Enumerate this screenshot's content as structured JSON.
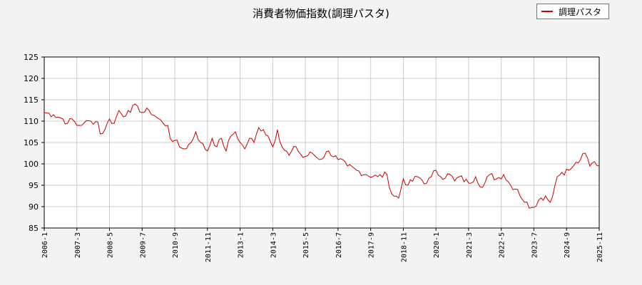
{
  "chart_data": {
    "type": "line",
    "title": "消費者物価指数(調理パスタ)",
    "legend": {
      "position": "top-right",
      "entries": [
        "調理パスタ"
      ]
    },
    "ylim": [
      85,
      125
    ],
    "yticks": [
      85,
      90,
      95,
      100,
      105,
      110,
      115,
      120,
      125
    ],
    "xtick_labels": [
      "2006-1",
      "2007-3",
      "2008-5",
      "2009-7",
      "2010-9",
      "2011-11",
      "2013-1",
      "2014-3",
      "2015-5",
      "2016-7",
      "2017-9",
      "2018-11",
      "2020-1",
      "2021-3",
      "2022-5",
      "2023-7",
      "2024-9",
      "2025-11"
    ],
    "grid": true,
    "series": [
      {
        "name": "調理パスタ",
        "color": "#cc0000",
        "x_start": "2006-1",
        "x_end": "2025-11",
        "anchors": [
          [
            "2006-1",
            112.0
          ],
          [
            "2006-5",
            111.5
          ],
          [
            "2006-9",
            110.5
          ],
          [
            "2006-11",
            109.5
          ],
          [
            "2007-1",
            110.5
          ],
          [
            "2007-3",
            109.0
          ],
          [
            "2007-6",
            109.5
          ],
          [
            "2007-9",
            110.0
          ],
          [
            "2007-12",
            109.8
          ],
          [
            "2008-1",
            107.0
          ],
          [
            "2008-3",
            108.0
          ],
          [
            "2008-5",
            110.5
          ],
          [
            "2008-7",
            109.5
          ],
          [
            "2008-9",
            112.5
          ],
          [
            "2008-11",
            111.0
          ],
          [
            "2009-1",
            112.5
          ],
          [
            "2009-5",
            113.5
          ],
          [
            "2009-7",
            112.0
          ],
          [
            "2009-10",
            112.5
          ],
          [
            "2010-1",
            111.0
          ],
          [
            "2010-4",
            109.5
          ],
          [
            "2010-6",
            109.0
          ],
          [
            "2010-7",
            106.0
          ],
          [
            "2010-9",
            105.5
          ],
          [
            "2010-11",
            104.0
          ],
          [
            "2011-1",
            103.5
          ],
          [
            "2011-4",
            105.0
          ],
          [
            "2011-6",
            107.5
          ],
          [
            "2011-8",
            105.0
          ],
          [
            "2011-11",
            103.0
          ],
          [
            "2012-1",
            106.0
          ],
          [
            "2012-3",
            104.0
          ],
          [
            "2012-5",
            106.0
          ],
          [
            "2012-7",
            103.0
          ],
          [
            "2012-9",
            106.5
          ],
          [
            "2012-11",
            107.5
          ],
          [
            "2013-1",
            105.0
          ],
          [
            "2013-3",
            103.5
          ],
          [
            "2013-5",
            106.0
          ],
          [
            "2013-7",
            105.0
          ],
          [
            "2013-9",
            108.5
          ],
          [
            "2013-11",
            108.0
          ],
          [
            "2014-1",
            106.5
          ],
          [
            "2014-3",
            104.0
          ],
          [
            "2014-5",
            108.0
          ],
          [
            "2014-7",
            104.0
          ],
          [
            "2014-10",
            102.0
          ],
          [
            "2015-1",
            104.0
          ],
          [
            "2015-4",
            101.5
          ],
          [
            "2015-8",
            102.5
          ],
          [
            "2015-11",
            101.0
          ],
          [
            "2016-3",
            103.0
          ],
          [
            "2016-7",
            101.0
          ],
          [
            "2016-11",
            99.5
          ],
          [
            "2017-3",
            98.5
          ],
          [
            "2017-7",
            97.5
          ],
          [
            "2017-12",
            97.0
          ],
          [
            "2018-4",
            97.5
          ],
          [
            "2018-6",
            93.0
          ],
          [
            "2018-9",
            92.0
          ],
          [
            "2018-11",
            96.5
          ],
          [
            "2019-1",
            95.0
          ],
          [
            "2019-5",
            97.0
          ],
          [
            "2019-9",
            95.5
          ],
          [
            "2019-11",
            97.0
          ],
          [
            "2020-1",
            98.5
          ],
          [
            "2020-3",
            97.0
          ],
          [
            "2020-7",
            97.5
          ],
          [
            "2020-9",
            96.0
          ],
          [
            "2020-11",
            97.0
          ],
          [
            "2021-3",
            95.5
          ],
          [
            "2021-6",
            97.0
          ],
          [
            "2021-9",
            94.5
          ],
          [
            "2021-12",
            97.5
          ],
          [
            "2022-3",
            96.5
          ],
          [
            "2022-6",
            97.5
          ],
          [
            "2022-9",
            95.0
          ],
          [
            "2022-12",
            94.0
          ],
          [
            "2023-3",
            91.0
          ],
          [
            "2023-6",
            89.8
          ],
          [
            "2023-9",
            91.5
          ],
          [
            "2023-12",
            92.5
          ],
          [
            "2024-2",
            91.0
          ],
          [
            "2024-5",
            97.0
          ],
          [
            "2024-7",
            98.0
          ],
          [
            "2024-10",
            98.5
          ],
          [
            "2024-12",
            99.5
          ],
          [
            "2025-3",
            101.0
          ],
          [
            "2025-5",
            102.5
          ],
          [
            "2025-7",
            99.5
          ],
          [
            "2025-9",
            100.5
          ],
          [
            "2025-11",
            99.5
          ]
        ]
      }
    ]
  }
}
